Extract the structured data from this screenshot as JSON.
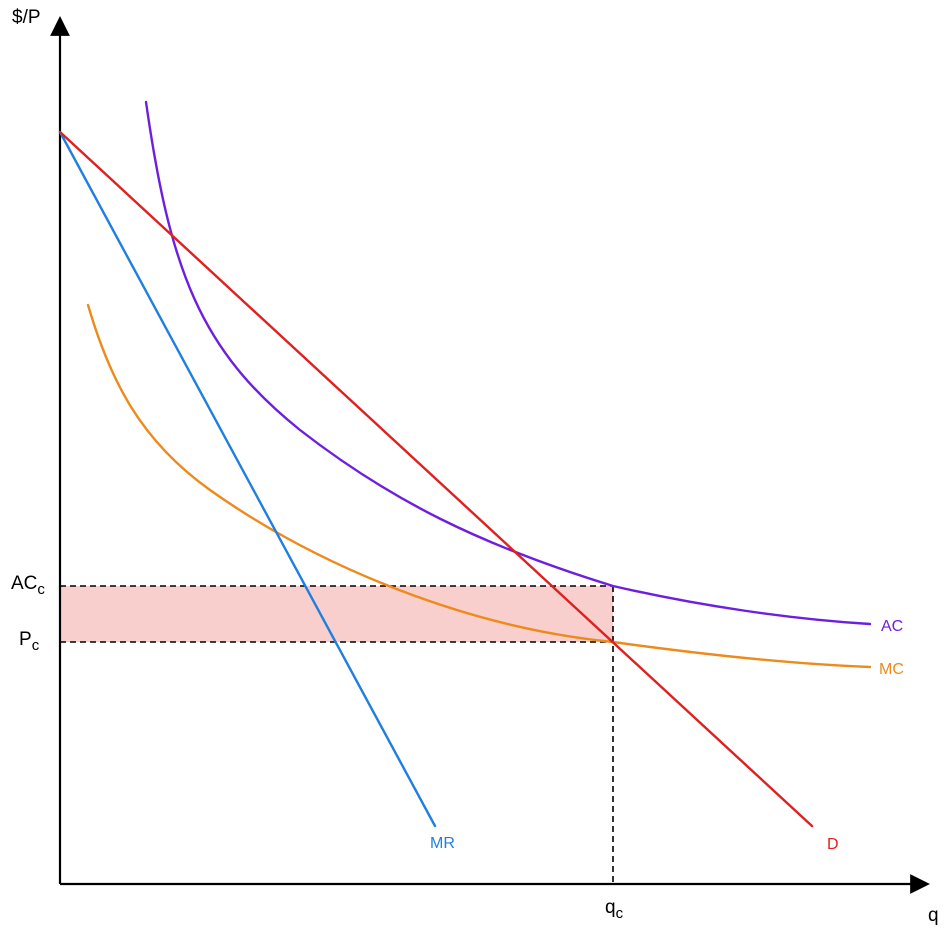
{
  "axes": {
    "y_label": "$/P",
    "x_label": "q"
  },
  "price_labels": {
    "ac": {
      "main": "AC",
      "sub": "c"
    },
    "p": {
      "main": "P",
      "sub": "c"
    }
  },
  "quantity_label": {
    "main": "q",
    "sub": "c"
  },
  "curves": {
    "ac": {
      "label": "AC",
      "color": "#6d1fe0"
    },
    "mc": {
      "label": "MC",
      "color": "#ee8a1b"
    },
    "mr": {
      "label": "MR",
      "color": "#1f7fe0"
    },
    "d": {
      "label": "D",
      "color": "#e01f1f"
    }
  },
  "loss_area": {
    "color": "#f8cfcd"
  }
}
